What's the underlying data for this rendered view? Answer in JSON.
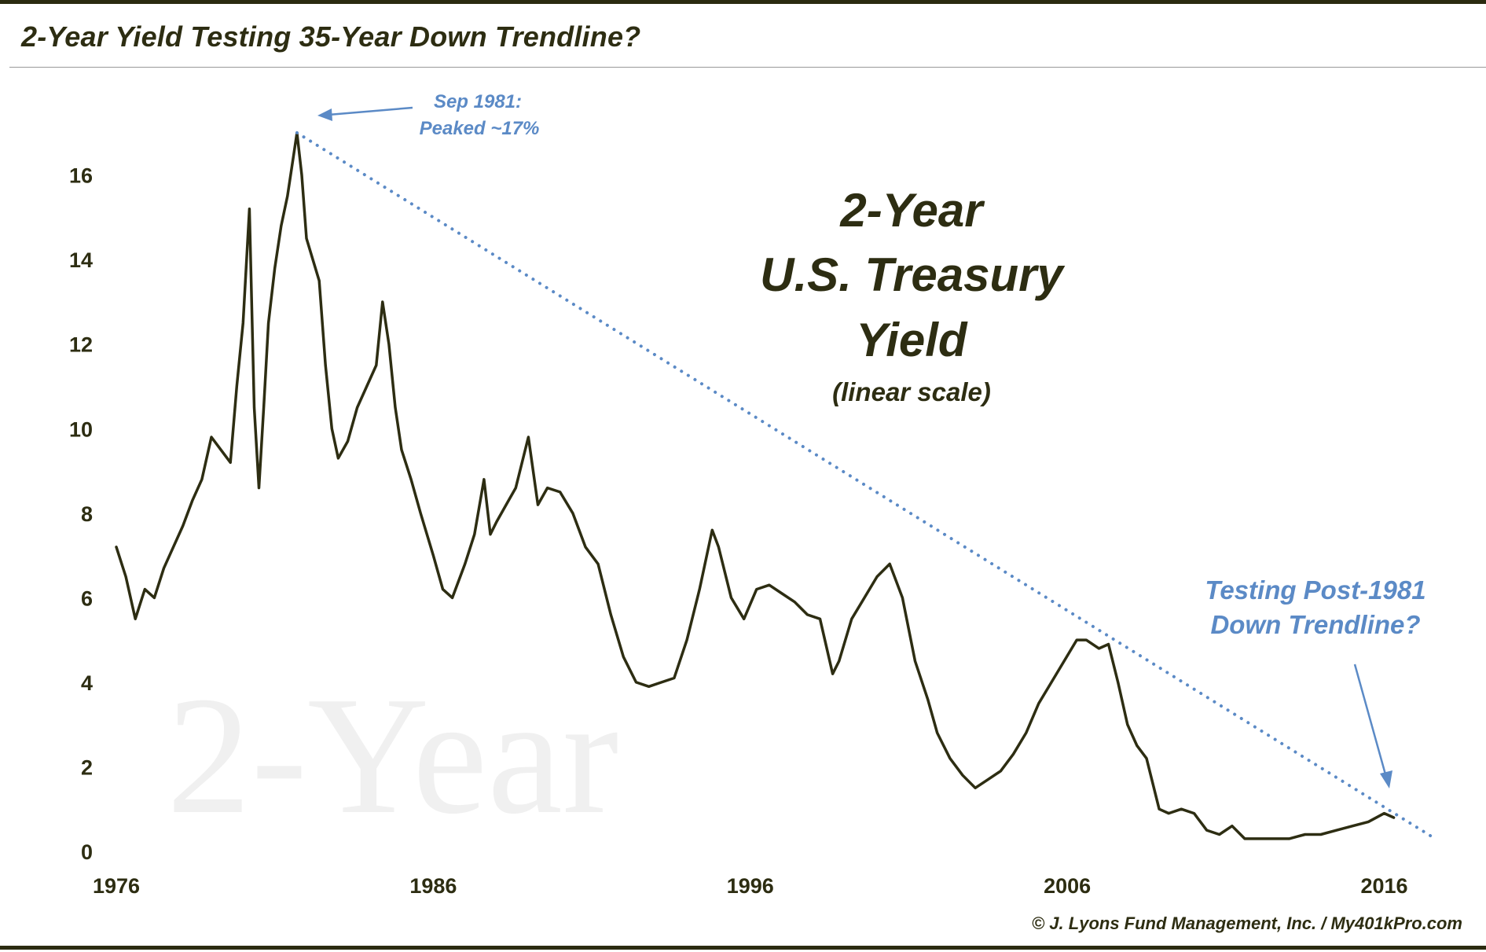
{
  "header": {
    "title": "2-Year Yield Testing 35-Year Down Trendline?"
  },
  "watermark": "2-Year",
  "center_label": {
    "line1": "2-Year",
    "line2": "U.S. Treasury",
    "line3": "Yield",
    "line4": "(linear scale)"
  },
  "annotations": {
    "peak_line1": "Sep 1981:",
    "peak_line2": "Peaked ~17%",
    "test_line1": "Testing Post-1981",
    "test_line2": "Down Trendline?"
  },
  "footer": {
    "credit": "© J. Lyons Fund Management, Inc. / My401kPro.com"
  },
  "colors": {
    "series": "#2d2d12",
    "trendline": "#5b8ac6",
    "annotation": "#5b8ac6"
  },
  "chart_data": {
    "type": "line",
    "title": "2-Year Yield Testing 35-Year Down Trendline?",
    "xlabel": "",
    "ylabel": "",
    "x_tick_labels": [
      "1976",
      "1986",
      "1996",
      "2006",
      "2016"
    ],
    "y_tick_labels": [
      "0",
      "2",
      "4",
      "6",
      "8",
      "10",
      "12",
      "14",
      "16"
    ],
    "xlim": [
      1976,
      2017.5
    ],
    "ylim": [
      0,
      17.5
    ],
    "grid": false,
    "series": [
      {
        "x": [
          1976.0,
          1976.3,
          1976.6,
          1976.9,
          1977.2,
          1977.5,
          1977.8,
          1978.1,
          1978.4,
          1978.7,
          1979.0,
          1979.3,
          1979.6,
          1979.8,
          1980.0,
          1980.2,
          1980.35,
          1980.5,
          1980.65,
          1980.8,
          1981.0,
          1981.2,
          1981.4,
          1981.6,
          1981.7,
          1981.85,
          1982.0,
          1982.2,
          1982.4,
          1982.6,
          1982.8,
          1983.0,
          1983.3,
          1983.6,
          1983.9,
          1984.2,
          1984.4,
          1984.6,
          1984.8,
          1985.0,
          1985.3,
          1985.6,
          1986.0,
          1986.3,
          1986.6,
          1987.0,
          1987.3,
          1987.6,
          1987.8,
          1988.0,
          1988.3,
          1988.6,
          1989.0,
          1989.3,
          1989.6,
          1990.0,
          1990.4,
          1990.8,
          1991.2,
          1991.6,
          1992.0,
          1992.4,
          1992.8,
          1993.2,
          1993.6,
          1994.0,
          1994.4,
          1994.8,
          1995.0,
          1995.4,
          1995.8,
          1996.2,
          1996.6,
          1997.0,
          1997.4,
          1997.8,
          1998.2,
          1998.6,
          1998.8,
          1999.2,
          1999.6,
          2000.0,
          2000.4,
          2000.8,
          2001.2,
          2001.6,
          2001.9,
          2002.3,
          2002.7,
          2003.1,
          2003.5,
          2003.9,
          2004.3,
          2004.7,
          2005.1,
          2005.5,
          2005.9,
          2006.3,
          2006.6,
          2007.0,
          2007.3,
          2007.6,
          2007.9,
          2008.2,
          2008.5,
          2008.9,
          2009.2,
          2009.6,
          2010.0,
          2010.4,
          2010.8,
          2011.2,
          2011.6,
          2012.0,
          2012.5,
          2013.0,
          2013.5,
          2014.0,
          2014.5,
          2015.0,
          2015.5,
          2016.0,
          2016.3
        ],
        "y": [
          7.2,
          6.5,
          5.5,
          6.2,
          6.0,
          6.7,
          7.2,
          7.7,
          8.3,
          8.8,
          9.8,
          9.5,
          9.2,
          11.0,
          12.5,
          15.2,
          10.5,
          8.6,
          10.5,
          12.5,
          13.8,
          14.8,
          15.5,
          16.5,
          17.0,
          16.0,
          14.5,
          14.0,
          13.5,
          11.5,
          10.0,
          9.3,
          9.7,
          10.5,
          11.0,
          11.5,
          13.0,
          12.0,
          10.5,
          9.5,
          8.8,
          8.0,
          7.0,
          6.2,
          6.0,
          6.8,
          7.5,
          8.8,
          7.5,
          7.8,
          8.2,
          8.6,
          9.8,
          8.2,
          8.6,
          8.5,
          8.0,
          7.2,
          6.8,
          5.6,
          4.6,
          4.0,
          3.9,
          4.0,
          4.1,
          5.0,
          6.2,
          7.6,
          7.2,
          6.0,
          5.5,
          6.2,
          6.3,
          6.1,
          5.9,
          5.6,
          5.5,
          4.2,
          4.5,
          5.5,
          6.0,
          6.5,
          6.8,
          6.0,
          4.5,
          3.6,
          2.8,
          2.2,
          1.8,
          1.5,
          1.7,
          1.9,
          2.3,
          2.8,
          3.5,
          4.0,
          4.5,
          5.0,
          5.0,
          4.8,
          4.9,
          4.0,
          3.0,
          2.5,
          2.2,
          1.0,
          0.9,
          1.0,
          0.9,
          0.5,
          0.4,
          0.6,
          0.3,
          0.3,
          0.3,
          0.3,
          0.4,
          0.4,
          0.5,
          0.6,
          0.7,
          0.9,
          0.8
        ]
      }
    ],
    "trendline": {
      "x": [
        1981.7,
        2017.5
      ],
      "y": [
        17.0,
        0.35
      ]
    },
    "annotations": [
      {
        "text": "Sep 1981: Peaked ~17%",
        "x": 1981.7,
        "y": 17.0
      },
      {
        "text": "Testing Post-1981 Down Trendline?",
        "x": 2016.0,
        "y": 1.45
      }
    ]
  }
}
